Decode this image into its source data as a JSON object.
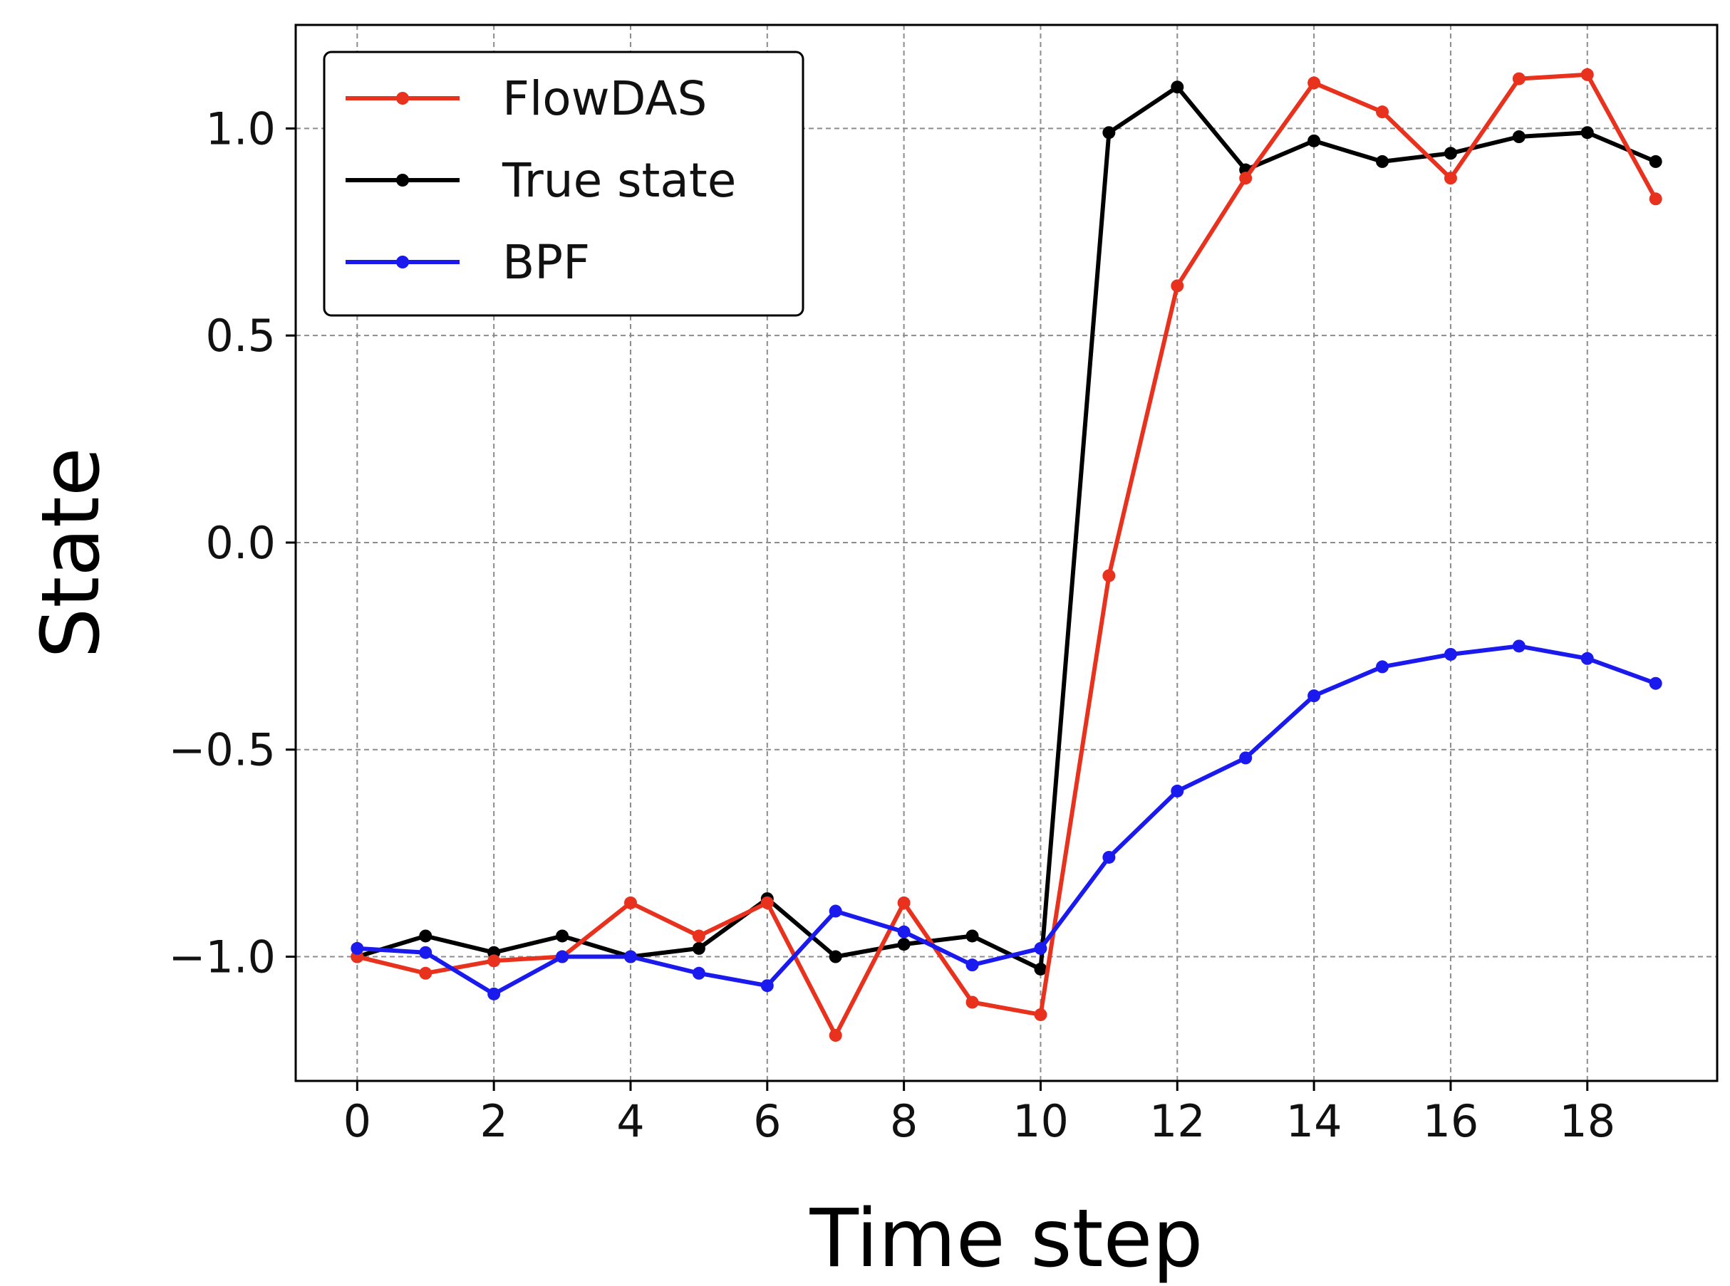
{
  "chart_data": {
    "type": "line",
    "title": "",
    "xlabel": "Time step",
    "ylabel": "State",
    "x": [
      0,
      1,
      2,
      3,
      4,
      5,
      6,
      7,
      8,
      9,
      10,
      11,
      12,
      13,
      14,
      15,
      16,
      17,
      18,
      19
    ],
    "xlim": [
      -0.9,
      19.9
    ],
    "ylim": [
      -1.3,
      1.25
    ],
    "xticks": [
      0,
      2,
      4,
      6,
      8,
      10,
      12,
      14,
      16,
      18
    ],
    "xtick_labels": [
      "0",
      "2",
      "4",
      "6",
      "8",
      "10",
      "12",
      "14",
      "16",
      "18"
    ],
    "yticks": [
      1.0,
      0.5,
      0.0,
      -0.5,
      -1.0
    ],
    "ytick_labels": [
      "1.0",
      "0.5",
      "0.0",
      "−0.5",
      "−1.0"
    ],
    "grid": true,
    "legend_position": "top-left",
    "series": [
      {
        "name": "FlowDAS",
        "color": "#e8321e",
        "values": [
          -1.0,
          -1.04,
          -1.01,
          -1.0,
          -0.87,
          -0.95,
          -0.87,
          -1.19,
          -0.87,
          -1.11,
          -1.14,
          -0.08,
          0.62,
          0.88,
          1.11,
          1.04,
          0.88,
          1.12,
          1.13,
          0.83
        ]
      },
      {
        "name": "True state",
        "color": "#000000",
        "values": [
          -1.0,
          -0.95,
          -0.99,
          -0.95,
          -1.0,
          -0.98,
          -0.86,
          -1.0,
          -0.97,
          -0.95,
          -1.03,
          0.99,
          1.1,
          0.9,
          0.97,
          0.92,
          0.94,
          0.98,
          0.99,
          0.92
        ]
      },
      {
        "name": "BPF",
        "color": "#1a1aee",
        "values": [
          -0.98,
          -0.99,
          -1.09,
          -1.0,
          -1.0,
          -1.04,
          -1.07,
          -0.89,
          -0.94,
          -1.02,
          -0.98,
          -0.76,
          -0.6,
          -0.52,
          -0.37,
          -0.3,
          -0.27,
          -0.25,
          -0.28,
          -0.34
        ]
      }
    ]
  }
}
